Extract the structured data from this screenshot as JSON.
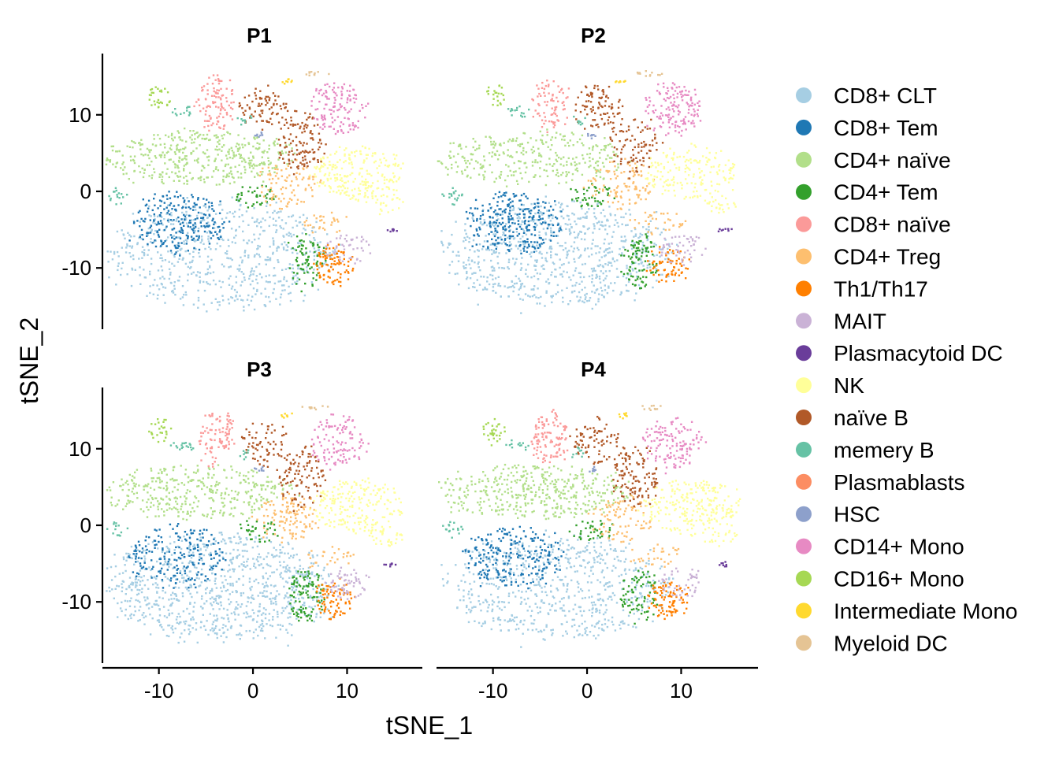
{
  "chart_data": {
    "type": "scatter",
    "kind": "tSNE facet plot",
    "facets": [
      "P1",
      "P2",
      "P3",
      "P4"
    ],
    "layout": "2x2",
    "xlabel": "tSNE_1",
    "ylabel": "tSNE_2",
    "xlim": [
      -16,
      18
    ],
    "ylim": [
      -18,
      18
    ],
    "xticks": [
      -10,
      0,
      10
    ],
    "yticks": [
      10,
      0,
      -10
    ],
    "xtick_labels": [
      "-10",
      "0",
      "10"
    ],
    "ytick_labels": [
      "10",
      "0",
      "-10"
    ],
    "grid": false,
    "legend_position": "right",
    "legend": [
      {
        "name": "CD8+ CLT",
        "color": "#a6cee3"
      },
      {
        "name": "CD8+ Tem",
        "color": "#1f78b4"
      },
      {
        "name": "CD4+ naïve",
        "color": "#b2df8a"
      },
      {
        "name": "CD4+ Tem",
        "color": "#33a02c"
      },
      {
        "name": "CD8+ naïve",
        "color": "#fb9a99"
      },
      {
        "name": "CD4+ Treg",
        "color": "#fdbf6f"
      },
      {
        "name": "Th1/Th17",
        "color": "#ff7f00"
      },
      {
        "name": "MAIT",
        "color": "#cab2d6"
      },
      {
        "name": "Plasmacytoid DC",
        "color": "#6a3d9a"
      },
      {
        "name": "NK",
        "color": "#ffff99"
      },
      {
        "name": "naïve B",
        "color": "#b15928"
      },
      {
        "name": "memery B",
        "color": "#66c2a5"
      },
      {
        "name": "Plasmablasts",
        "color": "#fc8d62"
      },
      {
        "name": "HSC",
        "color": "#8da0cb"
      },
      {
        "name": "CD14+ Mono",
        "color": "#e78ac3"
      },
      {
        "name": "CD16+ Mono",
        "color": "#a6d854"
      },
      {
        "name": "Intermediate Mono",
        "color": "#ffd92f"
      },
      {
        "name": "Myeloid DC",
        "color": "#e5c494"
      }
    ],
    "clusters": [
      {
        "type": "CD8+ CLT",
        "cx": -3.5,
        "cy": -8,
        "rx": 12,
        "ry": 7,
        "share": 0.3
      },
      {
        "type": "CD8+ Tem",
        "cx": -8,
        "cy": -4,
        "rx": 5,
        "ry": 4,
        "share": 0.09
      },
      {
        "type": "CD4+ naïve",
        "cx": -6,
        "cy": 4.5,
        "rx": 10,
        "ry": 3.5,
        "share": 0.14
      },
      {
        "type": "CD4+ Tem",
        "cx": 5.5,
        "cy": -9,
        "rx": 2,
        "ry": 3.5,
        "share": 0.035
      },
      {
        "type": "CD4+ Tem",
        "cx": 0.5,
        "cy": -0.5,
        "rx": 2.5,
        "ry": 1.5,
        "share": 0.015
      },
      {
        "type": "CD8+ naïve",
        "cx": -4,
        "cy": 11.5,
        "rx": 2,
        "ry": 3.5,
        "share": 0.035
      },
      {
        "type": "CD4+ Treg",
        "cx": 3.5,
        "cy": 1,
        "rx": 3.5,
        "ry": 3,
        "share": 0.04
      },
      {
        "type": "CD4+ Treg",
        "cx": 7.5,
        "cy": -4,
        "rx": 3,
        "ry": 1.5,
        "share": 0.012
      },
      {
        "type": "Th1/Th17",
        "cx": 8.5,
        "cy": -9.5,
        "rx": 2.2,
        "ry": 2.5,
        "share": 0.03
      },
      {
        "type": "MAIT",
        "cx": 10,
        "cy": -7.5,
        "rx": 2.5,
        "ry": 2,
        "share": 0.02
      },
      {
        "type": "Plasmacytoid DC",
        "cx": 14.5,
        "cy": -5,
        "rx": 0.8,
        "ry": 0.3,
        "share": 0.002
      },
      {
        "type": "NK",
        "cx": 11,
        "cy": 2.5,
        "rx": 5,
        "ry": 3.5,
        "share": 0.08
      },
      {
        "type": "NK",
        "cx": 14,
        "cy": -1.5,
        "rx": 2,
        "ry": 1.2,
        "share": 0.01
      },
      {
        "type": "naïve B",
        "cx": 1,
        "cy": 11,
        "rx": 2.5,
        "ry": 3,
        "share": 0.03
      },
      {
        "type": "naïve B",
        "cx": 5,
        "cy": 6.5,
        "rx": 2.5,
        "ry": 4,
        "share": 0.04
      },
      {
        "type": "memery B",
        "cx": -7.5,
        "cy": 10.5,
        "rx": 1.3,
        "ry": 0.8,
        "share": 0.006
      },
      {
        "type": "memery B",
        "cx": -14.5,
        "cy": -0.5,
        "rx": 1.1,
        "ry": 1.2,
        "share": 0.006
      },
      {
        "type": "memery B",
        "cx": -1,
        "cy": 9.5,
        "rx": 0.8,
        "ry": 0.8,
        "share": 0.003
      },
      {
        "type": "HSC",
        "cx": 0.5,
        "cy": 7.5,
        "rx": 0.6,
        "ry": 0.4,
        "share": 0.001
      },
      {
        "type": "CD14+ Mono",
        "cx": 9,
        "cy": 11,
        "rx": 3,
        "ry": 3.5,
        "share": 0.05
      },
      {
        "type": "CD16+ Mono",
        "cx": -10,
        "cy": 12.5,
        "rx": 1.3,
        "ry": 1.7,
        "share": 0.01
      },
      {
        "type": "Intermediate Mono",
        "cx": 3.5,
        "cy": 14.5,
        "rx": 0.7,
        "ry": 0.4,
        "share": 0.002
      },
      {
        "type": "Myeloid DC",
        "cx": 6.5,
        "cy": 15.5,
        "rx": 1.5,
        "ry": 0.4,
        "share": 0.004
      }
    ]
  }
}
